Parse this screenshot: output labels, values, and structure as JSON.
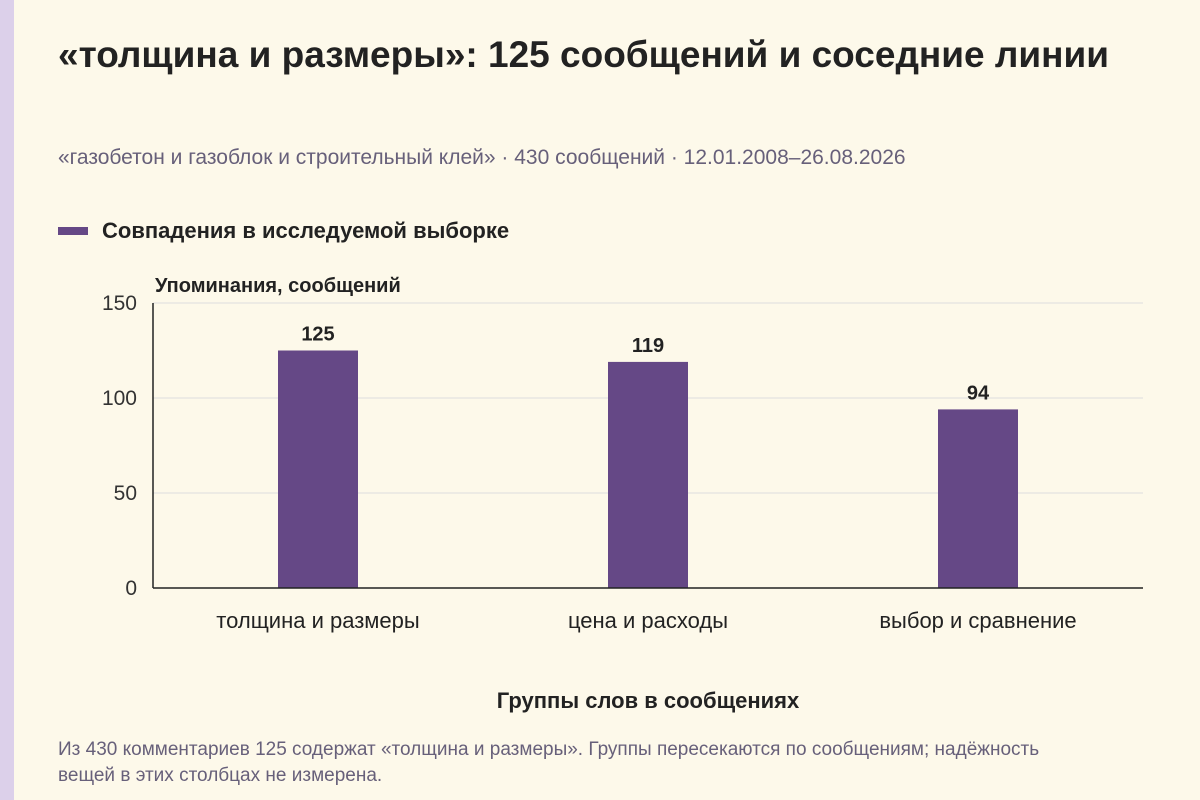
{
  "page": {
    "title": "«толщина и размеры»: 125 сообщений и соседние линии",
    "subtitle": "«газобетон и газоблок и строительный клей» · 430 сообщений · 12.01.2008–26.08.2026",
    "footnote": "Из 430 комментариев 125 содержат «толщина и размеры». Группы пересекаются по сообщениям; надёжность вещей в этих столбцах не измерена."
  },
  "colors": {
    "background": "#fdf9ea",
    "accent_strip": "#dcd0ea",
    "bar": "#654886",
    "muted_text": "#67607a",
    "grid": "#dddddd"
  },
  "chart_data": {
    "type": "bar",
    "categories": [
      "толщина и размеры",
      "цена и расходы",
      "выбор и сравнение"
    ],
    "series": [
      {
        "name": "Совпадения в исследуемой выборке",
        "values": [
          125,
          119,
          94
        ]
      }
    ],
    "data_labels": [
      "125",
      "119",
      "94"
    ],
    "xlabel": "Группы слов в сообщениях",
    "ylabel": "Упоминания, сообщений",
    "ylim": [
      0,
      150
    ],
    "yticks": [
      0,
      50,
      100,
      150
    ],
    "grid": true,
    "legend_position": "top-left"
  }
}
